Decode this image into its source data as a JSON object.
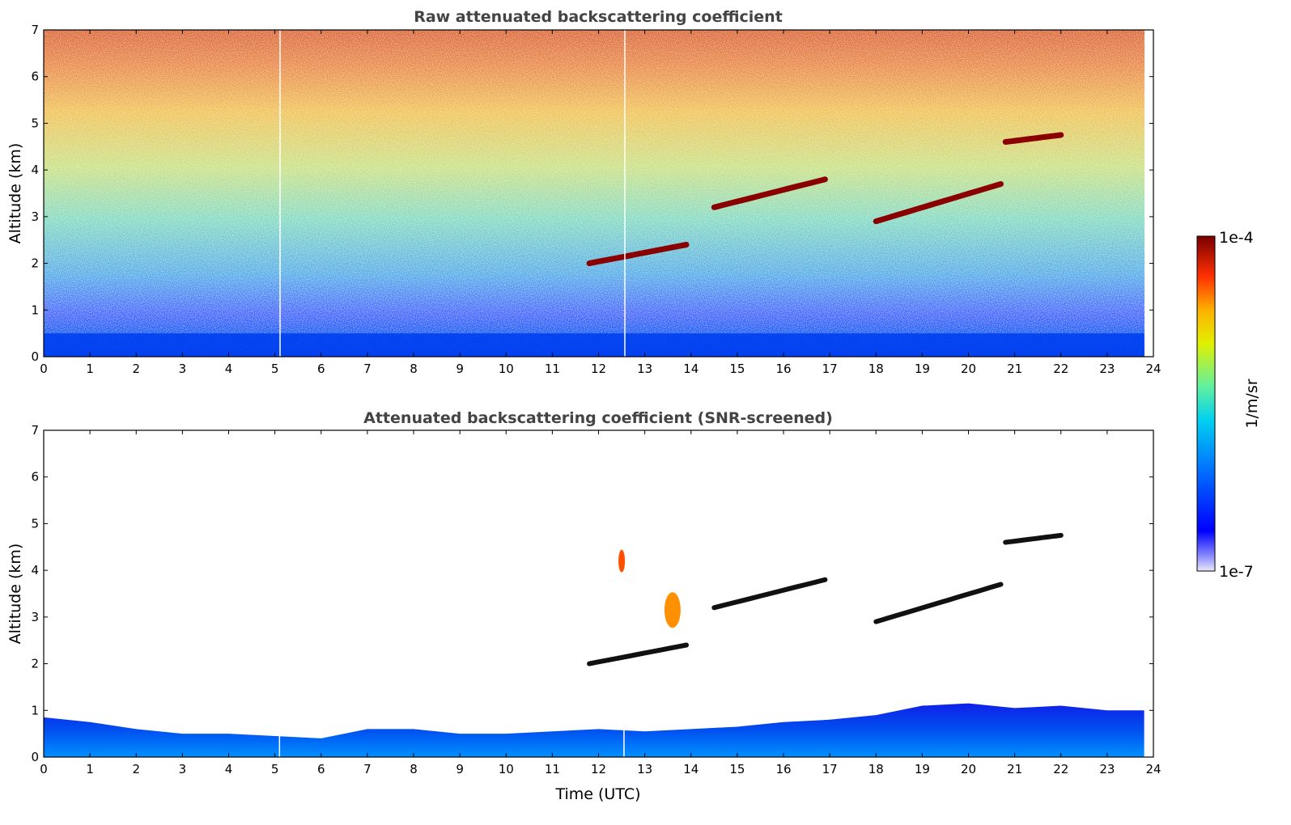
{
  "chart_data": [
    {
      "type": "heatmap",
      "title": "Raw attenuated backscattering coefficient",
      "xlabel": "",
      "ylabel": "Altitude (km)",
      "xlim": [
        0,
        24
      ],
      "ylim": [
        0,
        7
      ],
      "xticks": [
        "0",
        "1",
        "2",
        "3",
        "4",
        "5",
        "6",
        "7",
        "8",
        "9",
        "10",
        "11",
        "12",
        "13",
        "14",
        "15",
        "16",
        "17",
        "18",
        "19",
        "20",
        "21",
        "22",
        "23",
        "24"
      ],
      "yticks": [
        "0",
        "1",
        "2",
        "3",
        "4",
        "5",
        "6",
        "7"
      ],
      "data_end_time": 23.8,
      "features": [
        {
          "name": "boundary-layer",
          "x": [
            0,
            23.8
          ],
          "y": [
            0,
            0.5
          ]
        },
        {
          "name": "cloud-layer-1",
          "x": [
            14.5,
            16.9
          ],
          "y": [
            3.2,
            3.8
          ]
        },
        {
          "name": "cloud-layer-2",
          "x": [
            18,
            20.7
          ],
          "y": [
            2.9,
            3.7
          ]
        },
        {
          "name": "cloud-layer-3",
          "x": [
            11.8,
            13.9
          ],
          "y": [
            2.0,
            2.4
          ]
        },
        {
          "name": "cloud-layer-4",
          "x": [
            20.8,
            22.0
          ],
          "y": [
            4.6,
            4.75
          ]
        }
      ]
    },
    {
      "type": "heatmap",
      "title": "Attenuated backscattering coefficient (SNR-screened)",
      "xlabel": "Time (UTC)",
      "ylabel": "Altitude (km)",
      "xlim": [
        0,
        24
      ],
      "ylim": [
        0,
        7
      ],
      "xticks": [
        "0",
        "1",
        "2",
        "3",
        "4",
        "5",
        "6",
        "7",
        "8",
        "9",
        "10",
        "11",
        "12",
        "13",
        "14",
        "15",
        "16",
        "17",
        "18",
        "19",
        "20",
        "21",
        "22",
        "23",
        "24"
      ],
      "yticks": [
        "0",
        "1",
        "2",
        "3",
        "4",
        "5",
        "6",
        "7"
      ],
      "data_end_time": 23.8,
      "boundary_layer_top": [
        [
          0,
          0.85
        ],
        [
          1,
          0.75
        ],
        [
          2,
          0.6
        ],
        [
          3,
          0.5
        ],
        [
          4,
          0.5
        ],
        [
          5,
          0.45
        ],
        [
          6,
          0.4
        ],
        [
          7,
          0.6
        ],
        [
          8,
          0.6
        ],
        [
          9,
          0.5
        ],
        [
          10,
          0.5
        ],
        [
          11,
          0.55
        ],
        [
          12,
          0.6
        ],
        [
          13,
          0.55
        ],
        [
          14,
          0.6
        ],
        [
          15,
          0.65
        ],
        [
          16,
          0.75
        ],
        [
          17,
          0.8
        ],
        [
          18,
          0.9
        ],
        [
          19,
          1.1
        ],
        [
          20,
          1.15
        ],
        [
          21,
          1.05
        ],
        [
          22,
          1.1
        ],
        [
          23,
          1.0
        ],
        [
          23.8,
          1.0
        ]
      ]
    }
  ],
  "colorbar": {
    "min_label": "1e-7",
    "max_label": "1e-4",
    "label": "1/m/sr",
    "colors": [
      "#e8e8f8",
      "#0000ff",
      "#00a0ff",
      "#40e0d0",
      "#80ff80",
      "#ffff00",
      "#ff8000",
      "#ff0000",
      "#800000"
    ]
  }
}
